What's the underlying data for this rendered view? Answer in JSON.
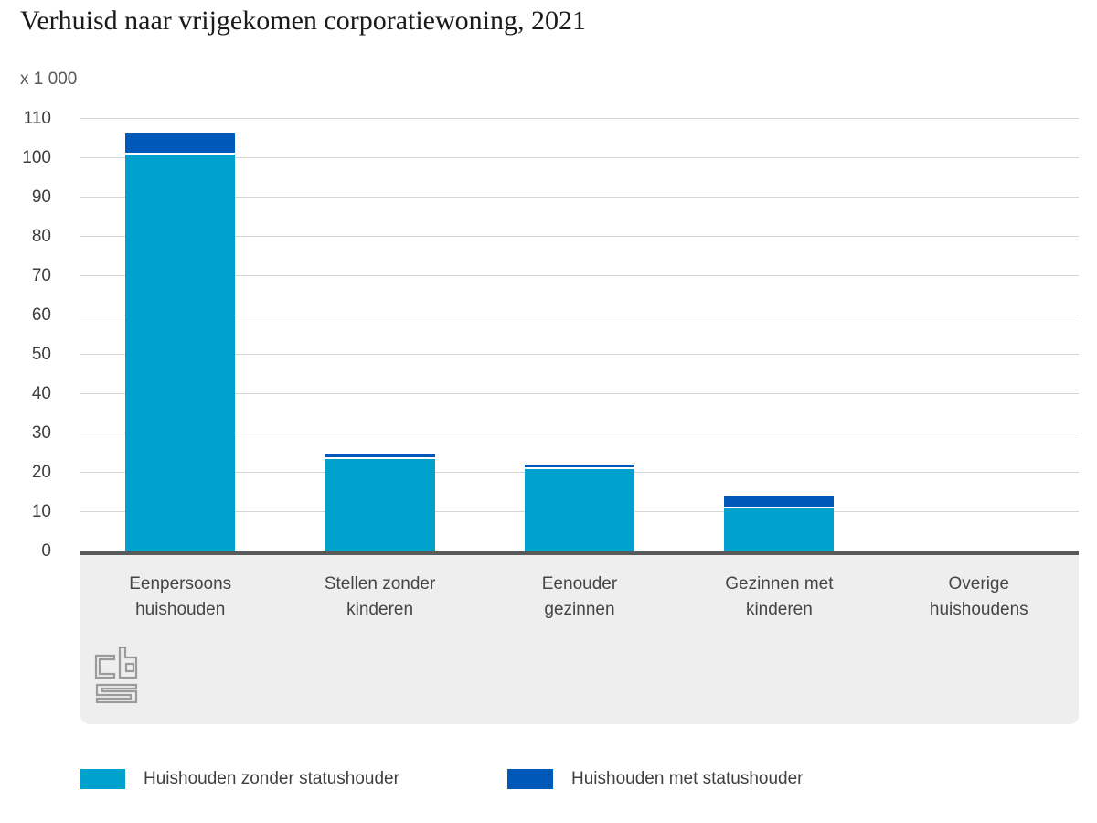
{
  "chart_data": {
    "type": "bar",
    "stacked": true,
    "title": "Verhuisd naar vrijgekomen corporatiewoning, 2021",
    "unit_label": "x 1 000",
    "categories": [
      "Eenpersoons huishouden",
      "Stellen zonder kinderen",
      "Eenouder gezinnen",
      "Gezinnen met kinderen",
      "Overige huishoudens"
    ],
    "categories_wrapped": [
      "Eenpersoons\nhuishouden",
      "Stellen zonder\nkinderen",
      "Eenouder\ngezinnen",
      "Gezinnen met\nkinderen",
      "Overige\nhuishoudens"
    ],
    "series": [
      {
        "name": "Huishouden zonder statushouder",
        "color": "#00a1cd",
        "values": [
          101,
          23.5,
          21,
          11,
          0
        ]
      },
      {
        "name": "Huishouden met statushouder",
        "color": "#0058b8",
        "values": [
          5,
          0.7,
          0.6,
          2.7,
          0
        ]
      }
    ],
    "ylim": [
      0,
      110
    ],
    "yticks": [
      0,
      10,
      20,
      30,
      40,
      50,
      60,
      70,
      80,
      90,
      100,
      110
    ],
    "grid": "horizontal-only",
    "legend_position": "bottom",
    "colors": {
      "gridline": "#d6d6d6",
      "axis_line": "#595959",
      "category_panel": "#eeeeee",
      "logo": "#9b9b9b",
      "segment_separator": "#ffffff"
    },
    "source_logo": "cbs"
  }
}
